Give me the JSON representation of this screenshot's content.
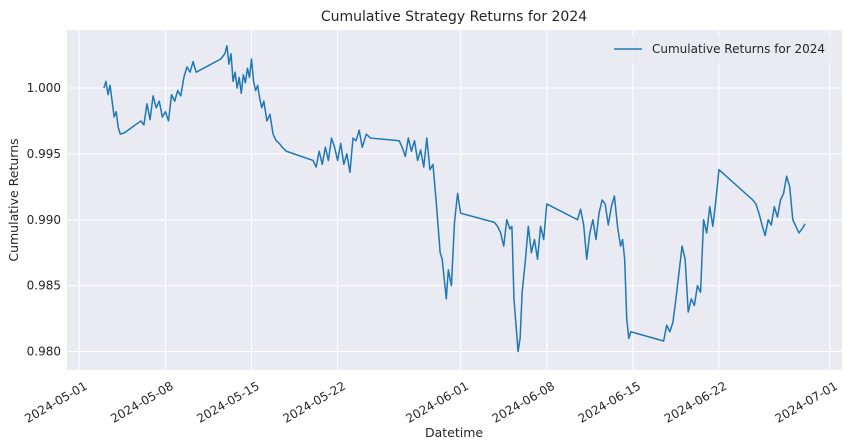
{
  "chart_data": {
    "type": "line",
    "title": "Cumulative Strategy Returns for 2024",
    "xlabel": "Datetime",
    "ylabel": "Cumulative Returns",
    "xlim": [
      "2024-04-30T00:00",
      "2024-07-02T00:00"
    ],
    "ylim": [
      0.9786,
      1.0044
    ],
    "grid": true,
    "legend_position": "upper right",
    "colors": {
      "series": "#1f77b4",
      "plot_background": "#eaeaf2",
      "grid": "#ffffff",
      "text": "#262626"
    },
    "x_ticks": [
      "2024-05-01",
      "2024-05-08",
      "2024-05-15",
      "2024-05-22",
      "2024-06-01",
      "2024-06-08",
      "2024-06-15",
      "2024-06-22",
      "2024-07-01"
    ],
    "y_ticks": [
      "0.980",
      "0.985",
      "0.990",
      "0.995",
      "1.000"
    ],
    "series": [
      {
        "name": "Cumulative Returns for 2024",
        "x": [
          "2024-05-03T00:00",
          "2024-05-03T04:00",
          "2024-05-03T08:00",
          "2024-05-03T12:00",
          "2024-05-03T16:00",
          "2024-05-03T20:00",
          "2024-05-04T00:00",
          "2024-05-04T04:00",
          "2024-05-04T08:00",
          "2024-05-04T16:00",
          "2024-05-06T00:00",
          "2024-05-06T06:00",
          "2024-05-06T12:00",
          "2024-05-06T18:00",
          "2024-05-07T00:00",
          "2024-05-07T06:00",
          "2024-05-07T12:00",
          "2024-05-07T18:00",
          "2024-05-08T00:00",
          "2024-05-08T06:00",
          "2024-05-08T12:00",
          "2024-05-08T18:00",
          "2024-05-09T00:00",
          "2024-05-09T06:00",
          "2024-05-09T12:00",
          "2024-05-09T18:00",
          "2024-05-10T00:00",
          "2024-05-10T06:00",
          "2024-05-10T12:00",
          "2024-05-12T12:00",
          "2024-05-12T20:00",
          "2024-05-13T00:00",
          "2024-05-13T04:00",
          "2024-05-13T08:00",
          "2024-05-13T12:00",
          "2024-05-13T16:00",
          "2024-05-13T20:00",
          "2024-05-14T00:00",
          "2024-05-14T04:00",
          "2024-05-14T08:00",
          "2024-05-14T12:00",
          "2024-05-14T16:00",
          "2024-05-14T20:00",
          "2024-05-15T00:00",
          "2024-05-15T04:00",
          "2024-05-15T08:00",
          "2024-05-15T12:00",
          "2024-05-15T16:00",
          "2024-05-15T20:00",
          "2024-05-16T00:00",
          "2024-05-16T06:00",
          "2024-05-16T12:00",
          "2024-05-16T18:00",
          "2024-05-17T00:00",
          "2024-05-17T06:00",
          "2024-05-17T12:00",
          "2024-05-17T20:00",
          "2024-05-20T00:00",
          "2024-05-20T06:00",
          "2024-05-20T12:00",
          "2024-05-20T18:00",
          "2024-05-21T00:00",
          "2024-05-21T06:00",
          "2024-05-21T12:00",
          "2024-05-21T18:00",
          "2024-05-22T00:00",
          "2024-05-22T06:00",
          "2024-05-22T12:00",
          "2024-05-22T18:00",
          "2024-05-23T00:00",
          "2024-05-23T06:00",
          "2024-05-23T12:00",
          "2024-05-23T18:00",
          "2024-05-24T00:00",
          "2024-05-24T08:00",
          "2024-05-24T16:00",
          "2024-05-27T00:00",
          "2024-05-27T06:00",
          "2024-05-27T12:00",
          "2024-05-27T18:00",
          "2024-05-28T00:00",
          "2024-05-28T06:00",
          "2024-05-28T12:00",
          "2024-05-28T18:00",
          "2024-05-29T00:00",
          "2024-05-29T06:00",
          "2024-05-29T12:00",
          "2024-05-29T18:00",
          "2024-05-30T00:00",
          "2024-05-30T04:00",
          "2024-05-30T08:00",
          "2024-05-30T12:00",
          "2024-05-30T16:00",
          "2024-05-30T20:00",
          "2024-05-31T00:00",
          "2024-05-31T06:00",
          "2024-05-31T12:00",
          "2024-05-31T18:00",
          "2024-06-01T00:00",
          "2024-06-03T18:00",
          "2024-06-04T00:00",
          "2024-06-04T06:00",
          "2024-06-04T12:00",
          "2024-06-04T18:00",
          "2024-06-05T00:00",
          "2024-06-05T04:00",
          "2024-06-05T08:00",
          "2024-06-05T12:00",
          "2024-06-05T16:00",
          "2024-06-05T20:00",
          "2024-06-06T00:00",
          "2024-06-06T06:00",
          "2024-06-06T12:00",
          "2024-06-06T18:00",
          "2024-06-07T00:00",
          "2024-06-07T06:00",
          "2024-06-07T12:00",
          "2024-06-07T18:00",
          "2024-06-08T00:00",
          "2024-06-10T12:00",
          "2024-06-10T18:00",
          "2024-06-11T00:00",
          "2024-06-11T06:00",
          "2024-06-11T12:00",
          "2024-06-11T18:00",
          "2024-06-12T00:00",
          "2024-06-12T06:00",
          "2024-06-12T12:00",
          "2024-06-12T18:00",
          "2024-06-13T00:00",
          "2024-06-13T06:00",
          "2024-06-13T12:00",
          "2024-06-13T18:00",
          "2024-06-14T00:00",
          "2024-06-14T04:00",
          "2024-06-14T08:00",
          "2024-06-14T12:00",
          "2024-06-14T16:00",
          "2024-06-14T20:00",
          "2024-06-17T12:00",
          "2024-06-17T18:00",
          "2024-06-18T00:00",
          "2024-06-18T06:00",
          "2024-06-18T12:00",
          "2024-06-18T18:00",
          "2024-06-19T00:00",
          "2024-06-19T06:00",
          "2024-06-19T12:00",
          "2024-06-19T18:00",
          "2024-06-20T00:00",
          "2024-06-20T06:00",
          "2024-06-20T12:00",
          "2024-06-20T18:00",
          "2024-06-21T00:00",
          "2024-06-21T06:00",
          "2024-06-21T12:00",
          "2024-06-21T18:00",
          "2024-06-22T00:00",
          "2024-06-24T18:00",
          "2024-06-25T00:00",
          "2024-06-25T06:00",
          "2024-06-25T12:00",
          "2024-06-25T18:00",
          "2024-06-26T00:00",
          "2024-06-26T06:00",
          "2024-06-26T12:00",
          "2024-06-26T18:00",
          "2024-06-27T00:00",
          "2024-06-27T06:00",
          "2024-06-27T12:00",
          "2024-06-27T18:00",
          "2024-06-28T00:00",
          "2024-06-28T06:00",
          "2024-06-28T12:00",
          "2024-06-28T18:00",
          "2024-06-29T00:00"
        ],
        "y": [
          1.0,
          1.0005,
          0.9995,
          1.0002,
          0.999,
          0.9978,
          0.9982,
          0.997,
          0.9965,
          0.9966,
          0.9975,
          0.9972,
          0.9988,
          0.9976,
          0.9994,
          0.9985,
          0.999,
          0.9978,
          0.9982,
          0.9975,
          0.9995,
          0.999,
          0.9998,
          0.9994,
          1.0008,
          1.0016,
          1.0012,
          1.002,
          1.0012,
          1.0022,
          1.0026,
          1.0032,
          1.0018,
          1.0026,
          1.0005,
          1.0012,
          1.0,
          1.0008,
          0.9996,
          1.001,
          1.0004,
          1.0015,
          1.0008,
          1.0022,
          1.0005,
          0.9998,
          1.0002,
          0.9992,
          0.9985,
          0.999,
          0.9975,
          0.998,
          0.9965,
          0.996,
          0.9958,
          0.9955,
          0.9952,
          0.9945,
          0.994,
          0.9952,
          0.9942,
          0.9955,
          0.9945,
          0.9962,
          0.9955,
          0.9945,
          0.9958,
          0.9942,
          0.995,
          0.9936,
          0.9962,
          0.996,
          0.9968,
          0.9955,
          0.9965,
          0.9962,
          0.996,
          0.9955,
          0.9948,
          0.9962,
          0.9952,
          0.996,
          0.9945,
          0.9953,
          0.994,
          0.9962,
          0.9938,
          0.9942,
          0.9915,
          0.9895,
          0.9875,
          0.987,
          0.9855,
          0.984,
          0.9862,
          0.985,
          0.9898,
          0.992,
          0.9905,
          0.9898,
          0.9895,
          0.989,
          0.988,
          0.99,
          0.9893,
          0.9895,
          0.984,
          0.982,
          0.98,
          0.981,
          0.9845,
          0.9868,
          0.9895,
          0.9875,
          0.9885,
          0.987,
          0.9895,
          0.9885,
          0.9912,
          0.99,
          0.9908,
          0.9896,
          0.987,
          0.989,
          0.99,
          0.9885,
          0.9905,
          0.9915,
          0.9912,
          0.9896,
          0.991,
          0.9918,
          0.9895,
          0.988,
          0.9885,
          0.987,
          0.9825,
          0.981,
          0.9815,
          0.9808,
          0.982,
          0.9815,
          0.9822,
          0.984,
          0.986,
          0.988,
          0.987,
          0.983,
          0.984,
          0.9835,
          0.985,
          0.9845,
          0.99,
          0.989,
          0.991,
          0.9895,
          0.9915,
          0.9938,
          0.9915,
          0.9912,
          0.9905,
          0.9896,
          0.9888,
          0.99,
          0.9896,
          0.991,
          0.9902,
          0.9915,
          0.992,
          0.9933,
          0.9925,
          0.99,
          0.9895,
          0.989,
          0.9893,
          0.9897
        ]
      }
    ]
  }
}
